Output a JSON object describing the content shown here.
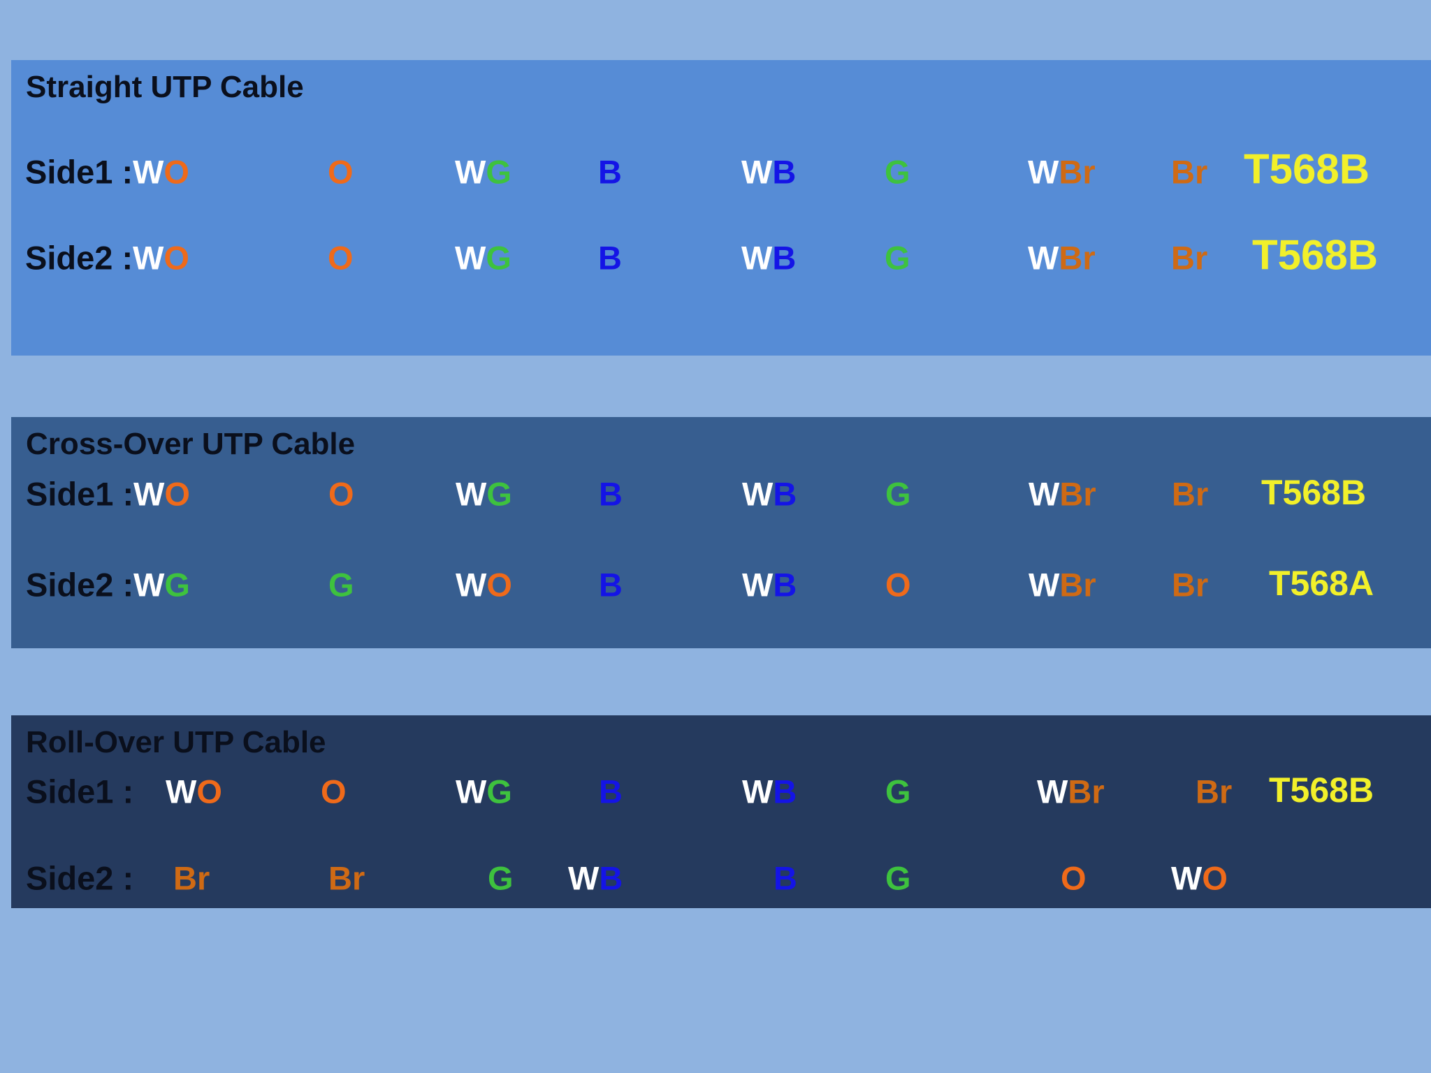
{
  "colors": {
    "W": "#ffffff",
    "O": "#ef6a1a",
    "G": "#3ec23e",
    "B": "#1414e6",
    "Br": "#cf6a14",
    "standard": "#f2f02a",
    "band_straight": "#568cd6",
    "band_cross": "#375e90",
    "band_roll": "#253a5e",
    "background": "#8fb3e0"
  },
  "sections": [
    {
      "title": "Straight UTP Cable",
      "rows": [
        {
          "label": "Side1 :",
          "wires": [
            "WO",
            "O",
            "WG",
            "B",
            "WB",
            "G",
            "WBr",
            "Br"
          ],
          "standard": "T568B"
        },
        {
          "label": "Side2 :",
          "wires": [
            "WO",
            "O",
            "WG",
            "B",
            "WB",
            "G",
            "WBr",
            "Br"
          ],
          "standard": "T568B"
        }
      ]
    },
    {
      "title": "Cross-Over UTP Cable",
      "rows": [
        {
          "label": "Side1 :",
          "wires": [
            "WO",
            "O",
            "WG",
            "B",
            "WB",
            "G",
            "WBr",
            "Br"
          ],
          "standard": "T568B"
        },
        {
          "label": "Side2 :",
          "wires": [
            "WG",
            "G",
            "WO",
            "B",
            "WB",
            "O",
            "WBr",
            "Br"
          ],
          "standard": "T568A"
        }
      ]
    },
    {
      "title": "Roll-Over UTP Cable",
      "rows": [
        {
          "label": "Side1 :",
          "wires": [
            "WO",
            "O",
            "WG",
            "B",
            "WB",
            "G",
            "WBr",
            "Br"
          ],
          "standard": "T568B"
        },
        {
          "label": "Side2 :",
          "wires": [
            "Br",
            "Br",
            "G",
            "WB",
            "B",
            "G",
            "O",
            "WO"
          ],
          "standard": ""
        }
      ]
    }
  ]
}
